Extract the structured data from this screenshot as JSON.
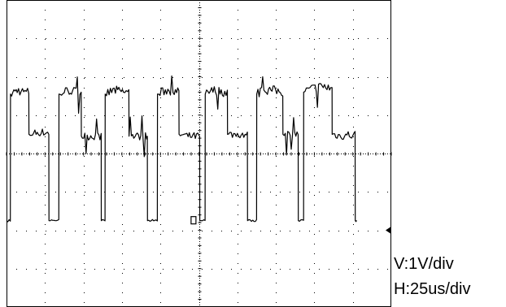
{
  "chart_data": {
    "type": "line",
    "grid": true,
    "x_divisions": 10,
    "y_divisions": 8,
    "xlim": [
      0,
      250
    ],
    "ylim": [
      -4,
      4
    ],
    "x_unit": "us",
    "y_unit": "V",
    "series": [
      {
        "values_note": "waveform samples as [time_us, volts]",
        "points": [
          [
            0,
            -1.75
          ],
          [
            2.5,
            -1.75
          ],
          [
            2.6,
            1.55
          ],
          [
            7,
            1.65
          ],
          [
            12,
            1.6
          ],
          [
            14.5,
            1.6
          ],
          [
            14.6,
            0.5
          ],
          [
            20,
            0.55
          ],
          [
            25,
            0.55
          ],
          [
            27.5,
            0.55
          ],
          [
            27.6,
            -1.75
          ],
          [
            34,
            -1.75
          ],
          [
            34.1,
            1.55
          ],
          [
            40,
            1.65
          ],
          [
            46,
            1.6
          ],
          [
            48.5,
            1.6
          ],
          [
            48.6,
            0.45
          ],
          [
            54,
            0.45
          ],
          [
            60,
            0.45
          ],
          [
            61.5,
            0.45
          ],
          [
            61.6,
            -1.75
          ],
          [
            64,
            -1.75
          ],
          [
            64.1,
            1.55
          ],
          [
            70,
            1.65
          ],
          [
            76,
            1.6
          ],
          [
            79.5,
            1.6
          ],
          [
            79.6,
            0.45
          ],
          [
            85,
            0.45
          ],
          [
            91,
            0.45
          ],
          [
            91.5,
            0.45
          ],
          [
            91.6,
            -1.75
          ],
          [
            98,
            -1.75
          ],
          [
            98.1,
            1.55
          ],
          [
            104,
            1.65
          ],
          [
            109,
            1.6
          ],
          [
            112,
            1.6
          ],
          [
            112.1,
            0.5
          ],
          [
            118,
            0.45
          ],
          [
            125,
            0.45
          ],
          [
            125.5,
            0.45
          ],
          [
            125.6,
            -1.75
          ],
          [
            129,
            -1.75
          ],
          [
            129.1,
            1.55
          ],
          [
            135,
            1.65
          ],
          [
            141,
            1.6
          ],
          [
            143.5,
            1.6
          ],
          [
            143.6,
            0.5
          ],
          [
            150,
            0.5
          ],
          [
            155,
            0.5
          ],
          [
            156.5,
            0.5
          ],
          [
            156.6,
            -1.75
          ],
          [
            162.5,
            -1.75
          ],
          [
            162.6,
            1.55
          ],
          [
            168,
            1.65
          ],
          [
            174,
            1.65
          ],
          [
            179.5,
            1.6
          ],
          [
            179.6,
            0.5
          ],
          [
            185,
            0.5
          ],
          [
            189.5,
            0.5
          ],
          [
            189.6,
            -1.75
          ],
          [
            193,
            -1.75
          ],
          [
            193.1,
            1.6
          ],
          [
            199,
            1.7
          ],
          [
            205,
            1.75
          ],
          [
            211.5,
            1.7
          ],
          [
            211.6,
            0.5
          ],
          [
            218,
            0.45
          ],
          [
            222,
            0.5
          ],
          [
            225,
            0.45
          ],
          [
            226.5,
            0.5
          ],
          [
            226.6,
            -1.75
          ],
          [
            227.5,
            -1.75
          ]
        ]
      }
    ],
    "trigger_marker_x": 121.5,
    "ground_marker_y": -2.0,
    "annotations": [
      "V:1V/div",
      "H:25us/div"
    ]
  },
  "labels": {
    "vertical_scale": "V:1V/div",
    "horizontal_scale": "H:25us/div"
  },
  "colors": {
    "trace": "#000000",
    "grid": "#000000",
    "background": "#ffffff"
  }
}
